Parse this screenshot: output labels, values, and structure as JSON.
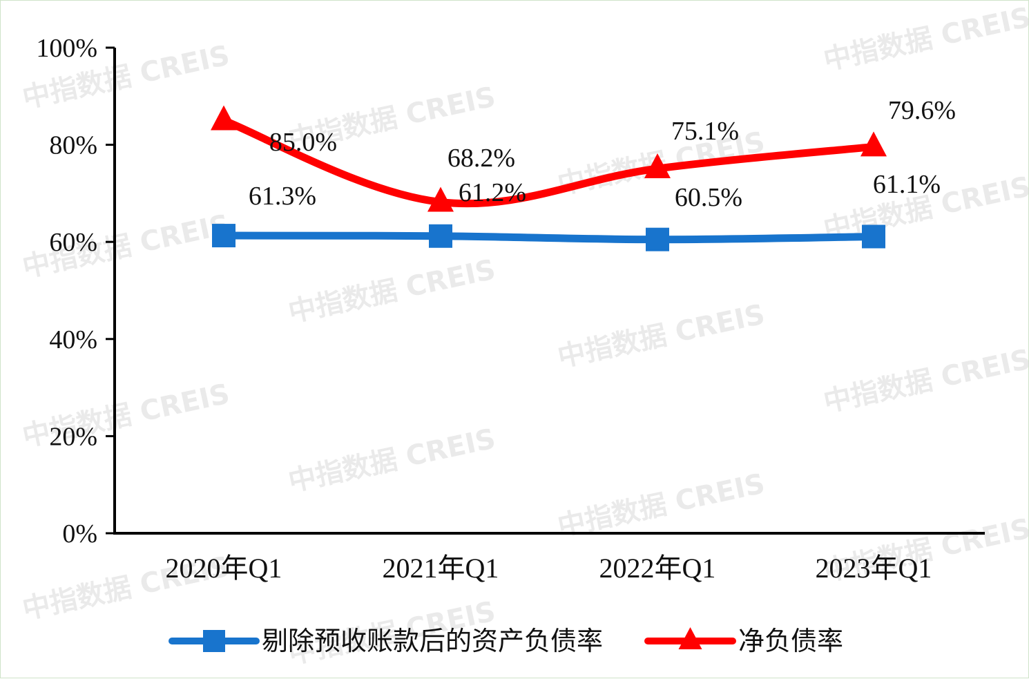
{
  "watermark": "中指数据 CREIS",
  "chart_data": {
    "type": "line",
    "categories": [
      "2020年Q1",
      "2021年Q1",
      "2022年Q1",
      "2023年Q1"
    ],
    "ylim": [
      0,
      100
    ],
    "yticks": [
      0,
      20,
      40,
      60,
      80,
      100
    ],
    "ytick_labels": [
      "0%",
      "20%",
      "40%",
      "60%",
      "80%",
      "100%"
    ],
    "grid": false,
    "legend_position": "bottom",
    "series": [
      {
        "name": "剔除预收账款后的资产负债率",
        "values": [
          61.3,
          61.2,
          60.5,
          61.1
        ],
        "labels": [
          "61.3%",
          "61.2%",
          "60.5%",
          "61.1%"
        ],
        "color": "#1874cd",
        "marker": "square"
      },
      {
        "name": "净负债率",
        "values": [
          85.0,
          68.2,
          75.1,
          79.6
        ],
        "labels": [
          "85.0%",
          "68.2%",
          "75.1%",
          "79.6%"
        ],
        "color": "#ff0000",
        "marker": "triangle"
      }
    ]
  }
}
